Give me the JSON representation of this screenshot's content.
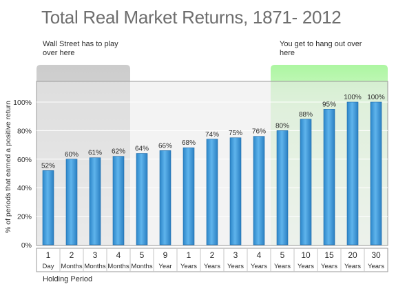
{
  "chart_data": {
    "type": "bar",
    "title": "Total Real Market Returns, 1871- 2012",
    "ylabel": "% of periods that earned a positive return",
    "xlabel": "Holding Period",
    "ylim": [
      0,
      100
    ],
    "yticks": [
      "0%",
      "20%",
      "40%",
      "60%",
      "80%",
      "100%"
    ],
    "categories": [
      {
        "num": "1",
        "unit": "Day"
      },
      {
        "num": "2",
        "unit": "Months"
      },
      {
        "num": "3",
        "unit": "Months"
      },
      {
        "num": "4",
        "unit": "Months"
      },
      {
        "num": "5",
        "unit": "Months"
      },
      {
        "num": "9",
        "unit": "Year"
      },
      {
        "num": "1",
        "unit": "Years"
      },
      {
        "num": "2",
        "unit": "Years"
      },
      {
        "num": "3",
        "unit": "Years"
      },
      {
        "num": "4",
        "unit": "Years"
      },
      {
        "num": "5",
        "unit": "Years"
      },
      {
        "num": "10",
        "unit": "Years"
      },
      {
        "num": "15",
        "unit": "Years"
      },
      {
        "num": "20",
        "unit": "Years"
      },
      {
        "num": "30",
        "unit": "Years"
      }
    ],
    "values": [
      52,
      60,
      61,
      62,
      64,
      66,
      68,
      74,
      75,
      76,
      80,
      88,
      95,
      100,
      100
    ],
    "data_labels": [
      "52%",
      "60%",
      "61%",
      "62%",
      "64%",
      "66%",
      "68%",
      "74%",
      "75%",
      "76%",
      "80%",
      "88%",
      "95%",
      "100%",
      "100%"
    ],
    "grid": true,
    "bar_color": "#3a9ad9",
    "annotations": {
      "left": {
        "text": "Wall Street has to play over here",
        "color": "#cfcfcf"
      },
      "right": {
        "text": "You get to hang out over here",
        "color": "#a6f09a"
      }
    }
  }
}
